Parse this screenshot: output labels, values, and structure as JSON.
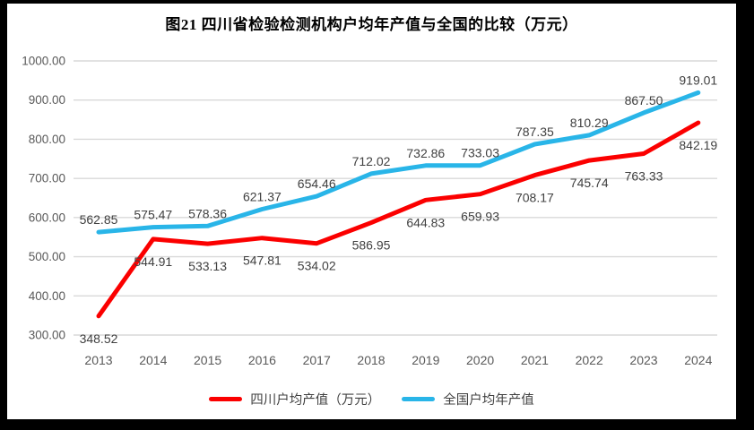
{
  "title": "图21  四川省检验检测机构户均年产值与全国的比较（万元）",
  "chart_data": {
    "type": "line",
    "categories": [
      "2013",
      "2014",
      "2015",
      "2016",
      "2017",
      "2018",
      "2019",
      "2020",
      "2021",
      "2022",
      "2023",
      "2024"
    ],
    "series": [
      {
        "name": "四川户均产值（万元）",
        "color": "#fb0000",
        "label_position": "below",
        "values": [
          348.52,
          544.91,
          533.13,
          547.81,
          534.02,
          586.95,
          644.83,
          659.93,
          708.17,
          745.74,
          763.33,
          842.19
        ]
      },
      {
        "name": "全国户均年产值",
        "color": "#29b5e8",
        "label_position": "above",
        "values": [
          562.85,
          575.47,
          578.36,
          621.37,
          654.46,
          712.02,
          732.86,
          733.03,
          787.35,
          810.29,
          867.5,
          919.01
        ]
      }
    ],
    "ylim": [
      300,
      1000
    ],
    "ytick_step": 100,
    "ytick_labels": [
      "300.00",
      "400.00",
      "500.00",
      "600.00",
      "700.00",
      "800.00",
      "900.00",
      "1000.00"
    ],
    "value_label_decimals": 2,
    "grid": true,
    "legend_position": "bottom",
    "colors": {
      "gridline": "#d9d9d9",
      "tick_text": "#595959",
      "data_label": "#404040",
      "frame": "#000000",
      "panel_background": "#ffffff"
    }
  }
}
